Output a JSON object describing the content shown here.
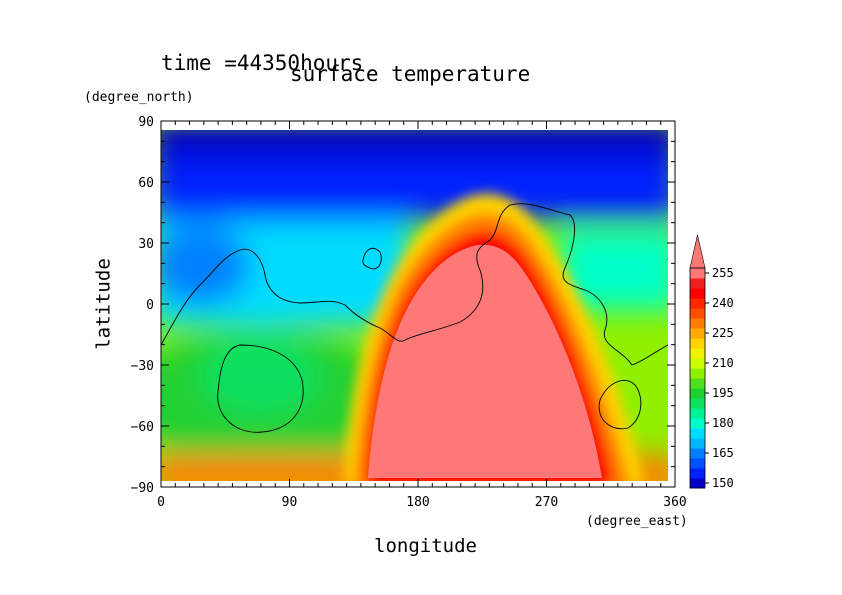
{
  "header": {
    "time_label": "time =44350hours"
  },
  "chart_data": {
    "type": "heatmap",
    "title": "surface temperature",
    "xlabel": "longitude",
    "ylabel": "latitude",
    "x_units": "(degree_east)",
    "y_units": "(degree_north)",
    "xlim": [
      0,
      360
    ],
    "ylim": [
      -90,
      90
    ],
    "x_ticks": [
      "0",
      "90",
      "180",
      "270",
      "360"
    ],
    "y_ticks": [
      "90",
      "60",
      "30",
      "0",
      "−30",
      "−60",
      "−90"
    ],
    "x_tick_values": [
      0,
      90,
      180,
      270,
      360
    ],
    "y_tick_values": [
      90,
      60,
      30,
      0,
      -30,
      -60,
      -90
    ],
    "colorbar": {
      "levels": [
        150,
        155,
        160,
        165,
        170,
        175,
        180,
        185,
        190,
        195,
        200,
        205,
        210,
        215,
        220,
        225,
        230,
        235,
        240,
        245,
        250,
        255
      ],
      "tick_labels": [
        "150",
        "165",
        "180",
        "195",
        "210",
        "225",
        "240",
        "255"
      ],
      "tick_values": [
        150,
        165,
        180,
        195,
        210,
        225,
        240,
        255
      ],
      "colors": [
        "#0000c8",
        "#0020ff",
        "#0050ff",
        "#0080ff",
        "#00b4ff",
        "#00dcff",
        "#00ffc8",
        "#00f096",
        "#10e060",
        "#20d030",
        "#50e020",
        "#90f000",
        "#c8ff00",
        "#f0f000",
        "#ffd200",
        "#ffaa00",
        "#ff8000",
        "#ff5000",
        "#ff2800",
        "#ff0000",
        "#f02020",
        "#ff7878"
      ],
      "extend_max": true
    },
    "field_summary": [
      {
        "region": "north polar cap (lat > 45)",
        "value": 150
      },
      {
        "region": "substellar hot spot (lon 170-290, lat -90 to 35)",
        "value": 260
      },
      {
        "region": "southern mid-latitude belt near lon 60",
        "value": 195
      }
    ]
  }
}
